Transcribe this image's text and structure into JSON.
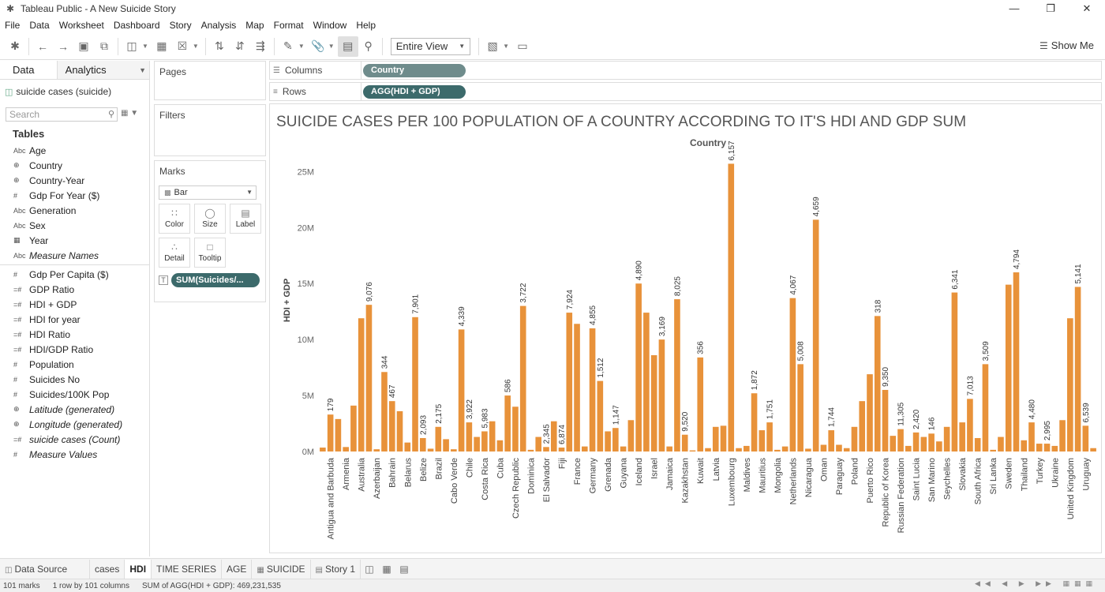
{
  "window": {
    "title": "Tableau Public - A New Suicide Story"
  },
  "menu": [
    "File",
    "Data",
    "Worksheet",
    "Dashboard",
    "Story",
    "Analysis",
    "Map",
    "Format",
    "Window",
    "Help"
  ],
  "toolbar": {
    "fit": "Entire View",
    "show_me": "Show Me"
  },
  "data_pane": {
    "tab_data": "Data",
    "tab_analytics": "Analytics",
    "source": "suicide cases (suicide)",
    "search_placeholder": "Search",
    "tables_label": "Tables",
    "dimensions": [
      {
        "icon": "Abc",
        "name": "Age",
        "italic": false
      },
      {
        "icon": "⊕",
        "name": "Country",
        "italic": false
      },
      {
        "icon": "⊕",
        "name": "Country-Year",
        "italic": false
      },
      {
        "icon": "#",
        "name": "Gdp For Year ($)",
        "italic": false
      },
      {
        "icon": "Abc",
        "name": "Generation",
        "italic": false
      },
      {
        "icon": "Abc",
        "name": "Sex",
        "italic": false
      },
      {
        "icon": "▦",
        "name": "Year",
        "italic": false
      },
      {
        "icon": "Abc",
        "name": "Measure Names",
        "italic": true
      }
    ],
    "measures": [
      {
        "icon": "#",
        "name": "Gdp Per Capita ($)",
        "italic": false
      },
      {
        "icon": "=#",
        "name": "GDP Ratio",
        "italic": false
      },
      {
        "icon": "=#",
        "name": "HDI + GDP",
        "italic": false
      },
      {
        "icon": "=#",
        "name": "HDI for year",
        "italic": false
      },
      {
        "icon": "=#",
        "name": "HDI Ratio",
        "italic": false
      },
      {
        "icon": "=#",
        "name": "HDI/GDP Ratio",
        "italic": false
      },
      {
        "icon": "#",
        "name": "Population",
        "italic": false
      },
      {
        "icon": "#",
        "name": "Suicides No",
        "italic": false
      },
      {
        "icon": "#",
        "name": "Suicides/100K Pop",
        "italic": false
      },
      {
        "icon": "⊕",
        "name": "Latitude (generated)",
        "italic": true
      },
      {
        "icon": "⊕",
        "name": "Longitude (generated)",
        "italic": true
      },
      {
        "icon": "=#",
        "name": "suicide cases (Count)",
        "italic": true
      },
      {
        "icon": "#",
        "name": "Measure Values",
        "italic": true
      }
    ]
  },
  "shelves": {
    "pages": "Pages",
    "filters": "Filters",
    "marks": "Marks",
    "mark_type": "Bar",
    "mark_buttons": [
      "Color",
      "Size",
      "Label",
      "Detail",
      "Tooltip"
    ],
    "mark_pill": "SUM(Suicides/...",
    "columns_label": "Columns",
    "columns_pill": "Country",
    "rows_label": "Rows",
    "rows_pill": "AGG(HDI + GDP)"
  },
  "tabs": {
    "data_source": "Data Source",
    "sheets": [
      "cases",
      "HDI",
      "TIME SERIES",
      "AGE",
      "SUICIDE",
      "Story 1"
    ],
    "active": "HDI"
  },
  "status": {
    "marks": "101 marks",
    "dims": "1 row by 101 columns",
    "sum": "SUM of AGG(HDI + GDP): 469,231,535"
  },
  "colors": {
    "bar": "#E8923A",
    "pill_dim": "#6F8C8C",
    "pill_measure": "#3C6A6B"
  },
  "chart_data": {
    "type": "bar",
    "title": "SUICIDE CASES PER 100 POPULATION OF A COUNTRY ACCORDING TO IT'S HDI AND GDP SUM",
    "header": "Country",
    "ylabel": "HDI + GDP",
    "ylim": [
      0,
      27000000
    ],
    "yticks": [
      0,
      5000000,
      10000000,
      15000000,
      20000000,
      25000000
    ],
    "ytick_labels": [
      "0M",
      "5M",
      "10M",
      "15M",
      "20M",
      "25M"
    ],
    "visible_tick_labels": [
      "Antigua and Barbuda",
      "Armenia",
      "Australia",
      "Azerbaijan",
      "Bahrain",
      "Belarus",
      "Belize",
      "Brazil",
      "Cabo Verde",
      "Chile",
      "Costa Rica",
      "Cuba",
      "Czech Republic",
      "Dominica",
      "El Salvador",
      "Fiji",
      "France",
      "Germany",
      "Grenada",
      "Guyana",
      "Iceland",
      "Israel",
      "Jamaica",
      "Kazakhstan",
      "Kuwait",
      "Latvia",
      "Luxembourg",
      "Maldives",
      "Mauritius",
      "Mongolia",
      "Netherlands",
      "Nicaragua",
      "Oman",
      "Paraguay",
      "Poland",
      "Puerto Rico",
      "Republic of Korea",
      "Russian Federation",
      "Saint Lucia",
      "San Marino",
      "Seychelles",
      "Slovakia",
      "South Africa",
      "Sri Lanka",
      "Sweden",
      "Thailand",
      "Turkey",
      "Ukraine",
      "United Kingdom",
      "Uruguay"
    ],
    "values": [
      350000,
      3300000,
      2900000,
      400000,
      4100000,
      11900000,
      13100000,
      200000,
      7100000,
      4500000,
      3600000,
      800000,
      12000000,
      1200000,
      250000,
      2200000,
      1100000,
      200000,
      10900000,
      2600000,
      1300000,
      1800000,
      2700000,
      1000000,
      5000000,
      4000000,
      13000000,
      150000,
      1300000,
      400000,
      2700000,
      350000,
      12400000,
      11400000,
      450000,
      11000000,
      6300000,
      1800000,
      2100000,
      450000,
      2800000,
      15000000,
      12400000,
      8600000,
      10000000,
      450000,
      13600000,
      1500000,
      100000,
      8400000,
      300000,
      2200000,
      2300000,
      25700000,
      300000,
      500000,
      5200000,
      1900000,
      2600000,
      150000,
      450000,
      13700000,
      7800000,
      250000,
      20700000,
      600000,
      1900000,
      600000,
      300000,
      2200000,
      4500000,
      6900000,
      12100000,
      5500000,
      1400000,
      2000000,
      500000,
      1700000,
      1300000,
      1600000,
      900000,
      2200000,
      14200000,
      2600000,
      4700000,
      1200000,
      7800000,
      150000,
      1300000,
      14900000,
      16000000,
      1000000,
      2600000,
      700000,
      700000,
      500000,
      2800000,
      11900000,
      14700000,
      2300000,
      300000
    ],
    "data_labels": [
      {
        "i": 1,
        "text": "179"
      },
      {
        "i": 6,
        "text": "9,076"
      },
      {
        "i": 8,
        "text": "344"
      },
      {
        "i": 9,
        "text": "467"
      },
      {
        "i": 12,
        "text": "7,901"
      },
      {
        "i": 13,
        "text": "2,093"
      },
      {
        "i": 15,
        "text": "2,175"
      },
      {
        "i": 18,
        "text": "4,339"
      },
      {
        "i": 19,
        "text": "3,922"
      },
      {
        "i": 21,
        "text": "5,983"
      },
      {
        "i": 24,
        "text": "586"
      },
      {
        "i": 26,
        "text": "3,722"
      },
      {
        "i": 29,
        "text": "2,345"
      },
      {
        "i": 31,
        "text": "6,874"
      },
      {
        "i": 32,
        "text": "7,924"
      },
      {
        "i": 35,
        "text": "4,855"
      },
      {
        "i": 36,
        "text": "1,512"
      },
      {
        "i": 38,
        "text": "1,147"
      },
      {
        "i": 41,
        "text": "4,890"
      },
      {
        "i": 44,
        "text": "3,169"
      },
      {
        "i": 46,
        "text": "8,025"
      },
      {
        "i": 47,
        "text": "9,520"
      },
      {
        "i": 49,
        "text": "356"
      },
      {
        "i": 53,
        "text": "6,157"
      },
      {
        "i": 56,
        "text": "1,872"
      },
      {
        "i": 58,
        "text": "1,751"
      },
      {
        "i": 61,
        "text": "4,067"
      },
      {
        "i": 62,
        "text": "5,008"
      },
      {
        "i": 64,
        "text": "4,659"
      },
      {
        "i": 66,
        "text": "1,744"
      },
      {
        "i": 72,
        "text": "318"
      },
      {
        "i": 73,
        "text": "9,350"
      },
      {
        "i": 75,
        "text": "11,305"
      },
      {
        "i": 77,
        "text": "2,420"
      },
      {
        "i": 79,
        "text": "146"
      },
      {
        "i": 82,
        "text": "6,341"
      },
      {
        "i": 84,
        "text": "7,013"
      },
      {
        "i": 86,
        "text": "3,509"
      },
      {
        "i": 90,
        "text": "4,794"
      },
      {
        "i": 92,
        "text": "4,480"
      },
      {
        "i": 94,
        "text": "2,995"
      },
      {
        "i": 98,
        "text": "5,141"
      },
      {
        "i": 99,
        "text": "6,539"
      }
    ]
  }
}
